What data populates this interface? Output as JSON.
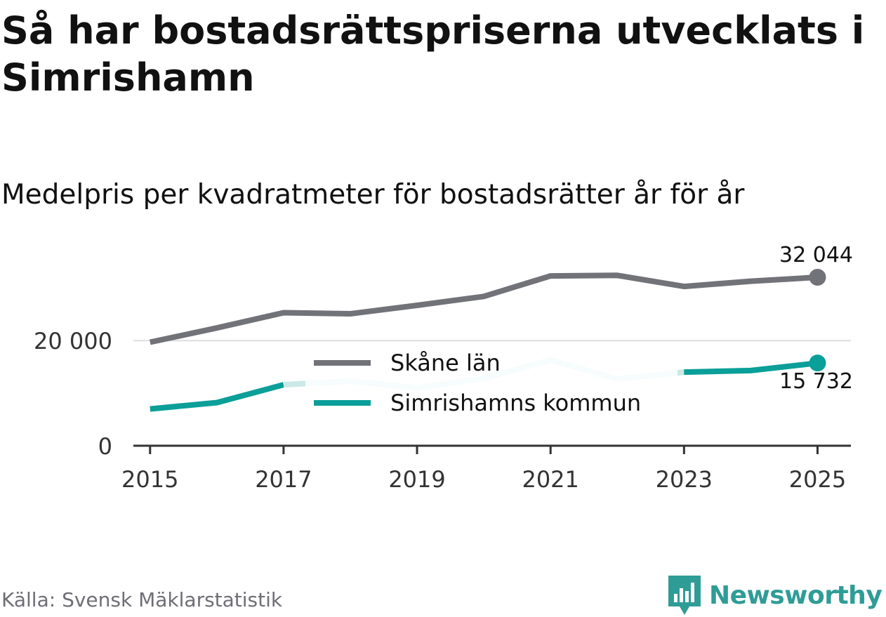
{
  "title": "Så har bostadsrättspriserna utvecklats i Simrishamn",
  "subtitle": "Medelpris per kvadratmeter för bostadsrätter år för år",
  "source": "Källa: Svensk Mäklarstatistik",
  "brand": {
    "name": "Newsworthy",
    "icon": "newsworthy-logo-icon",
    "color": "#2f9c96"
  },
  "chart_data": {
    "type": "line",
    "title": "Så har bostadsrättspriserna utvecklats i Simrishamn",
    "subtitle": "Medelpris per kvadratmeter för bostadsrätter år för år",
    "xlabel": "",
    "ylabel": "",
    "x": [
      2015,
      2016,
      2017,
      2018,
      2019,
      2020,
      2021,
      2022,
      2023,
      2024,
      2025
    ],
    "x_ticks": [
      "2015",
      "2017",
      "2019",
      "2021",
      "2023",
      "2025"
    ],
    "x_range": [
      2014.75,
      2025.5
    ],
    "y_ticks": [
      0,
      20000
    ],
    "y_tick_labels": [
      "0",
      "20 000"
    ],
    "ylim": [
      0,
      32044
    ],
    "grid": true,
    "legend_position": "center",
    "series": [
      {
        "name": "Skåne län",
        "color": "#727279",
        "values": [
          19700,
          22400,
          25300,
          25100,
          26700,
          28400,
          32300,
          32400,
          30300,
          31300,
          32044
        ],
        "end_label": "32 044"
      },
      {
        "name": "Simrishamns kommun",
        "color": "#0a9f98",
        "faded_color": "#cbe9e6",
        "values": [
          7000,
          8200,
          11600,
          12300,
          11000,
          12800,
          16300,
          12700,
          14000,
          14300,
          15732
        ],
        "faded_segments": [
          [
            2017,
            2023
          ]
        ],
        "end_label": "15 732"
      }
    ]
  }
}
